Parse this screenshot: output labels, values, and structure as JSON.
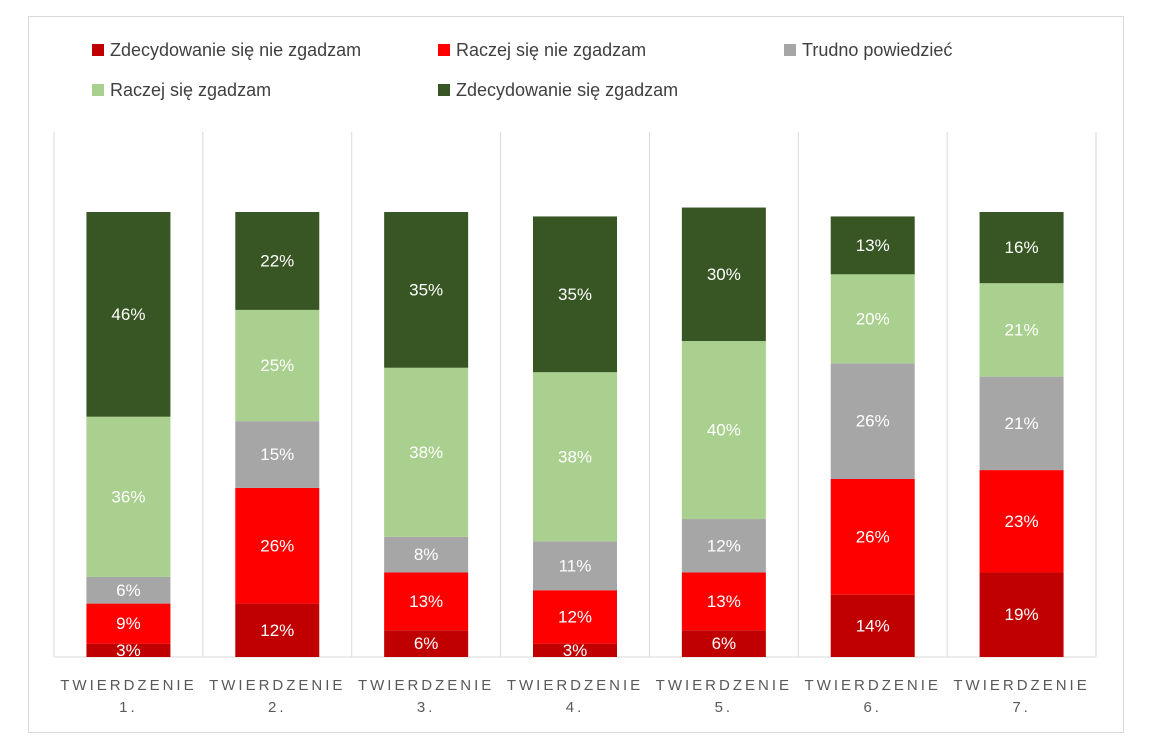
{
  "chart_data": {
    "type": "bar",
    "stacked": true,
    "percent": true,
    "title": "",
    "xlabel": "",
    "ylabel": "",
    "ylim": [
      0,
      100
    ],
    "grid": false,
    "legend_position": "top",
    "categories": [
      [
        "TWIERDZENIE",
        "1."
      ],
      [
        "TWIERDZENIE",
        "2."
      ],
      [
        "TWIERDZENIE",
        "3."
      ],
      [
        "TWIERDZENIE",
        "4."
      ],
      [
        "TWIERDZENIE",
        "5."
      ],
      [
        "TWIERDZENIE",
        "6."
      ],
      [
        "TWIERDZENIE",
        "7."
      ]
    ],
    "series": [
      {
        "name": "Zdecydowanie się nie zgadzam",
        "color": "#c00000",
        "values": [
          3,
          12,
          6,
          3,
          6,
          14,
          19
        ]
      },
      {
        "name": "Raczej się nie zgadzam",
        "color": "#ff0000",
        "values": [
          9,
          26,
          13,
          12,
          13,
          26,
          23
        ]
      },
      {
        "name": "Trudno powiedzieć",
        "color": "#a6a6a6",
        "values": [
          6,
          15,
          8,
          11,
          12,
          26,
          21
        ]
      },
      {
        "name": "Raczej się zgadzam",
        "color": "#a9d08e",
        "values": [
          36,
          25,
          38,
          38,
          40,
          20,
          21
        ]
      },
      {
        "name": "Zdecydowanie się zgadzam",
        "color": "#375623",
        "values": [
          46,
          22,
          35,
          35,
          30,
          13,
          16
        ]
      }
    ]
  }
}
